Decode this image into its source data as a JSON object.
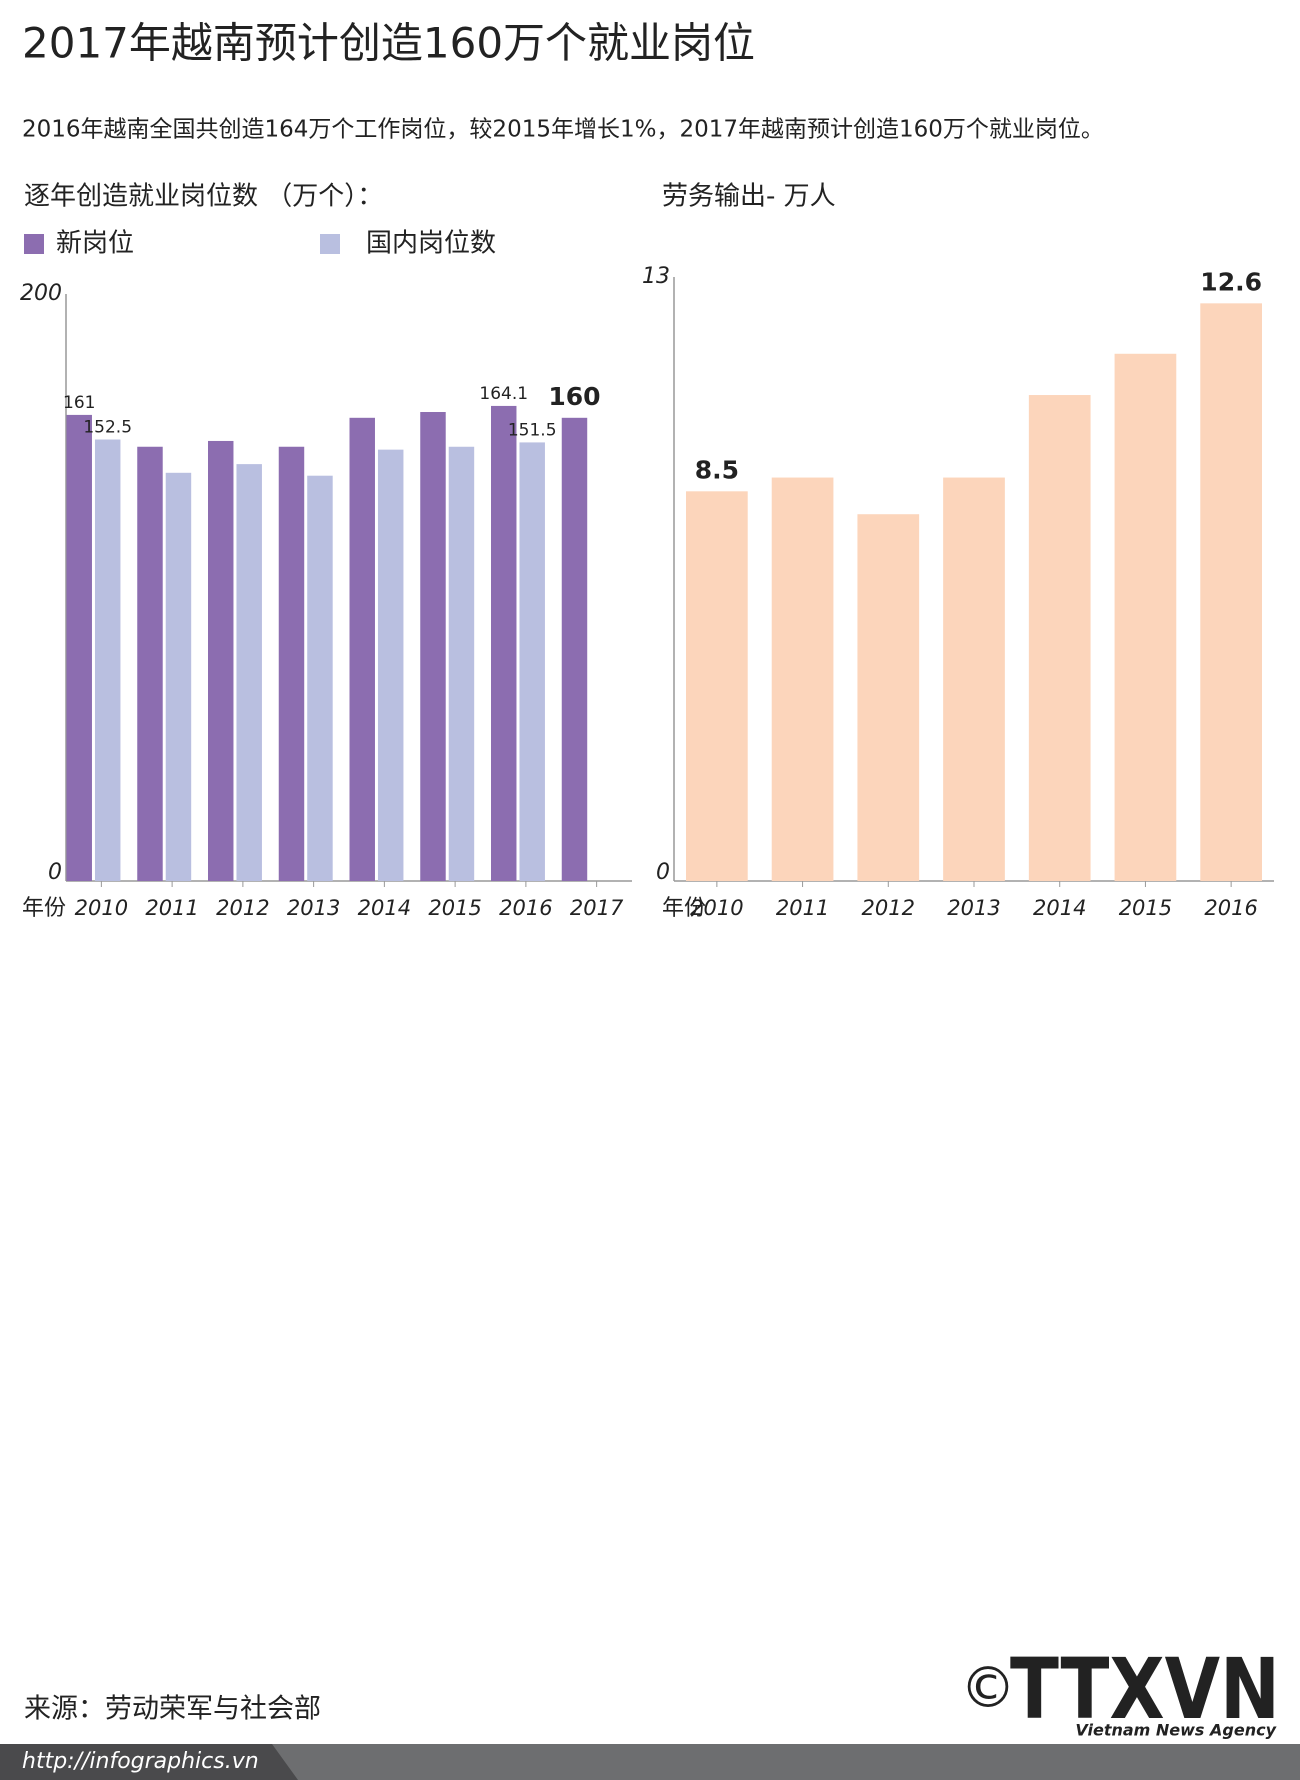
{
  "header": {
    "title": "2017年越南预计创造160万个就业岗位",
    "subtitle": "2016年越南全国共创造164万个工作岗位，较2015年增长1%，2017年越南预计创造160万个就业岗位。"
  },
  "chart_data": [
    {
      "type": "bar",
      "title": "逐年创造就业岗位数 （万个）：",
      "x_label": "年份",
      "categories": [
        "2010",
        "2011",
        "2012",
        "2013",
        "2014",
        "2015",
        "2016",
        "2017"
      ],
      "series": [
        {
          "name": "新岗位",
          "color": "#8c6db0",
          "values": [
            161,
            150,
            152,
            150,
            160,
            162,
            164.1,
            160
          ],
          "value_labels": [
            "161",
            null,
            null,
            null,
            null,
            null,
            "164.1",
            "160"
          ]
        },
        {
          "name": "国内岗位数",
          "color": "#b9bfe0",
          "values": [
            152.5,
            141,
            144,
            140,
            149,
            150,
            151.5,
            null
          ],
          "value_labels": [
            "152.5",
            null,
            null,
            null,
            null,
            null,
            "151.5",
            null
          ]
        }
      ],
      "ylim": [
        0,
        200
      ],
      "yticks": [
        0,
        200
      ],
      "grid": false
    },
    {
      "type": "bar",
      "title": "劳务输出- 万人",
      "x_label": "年份",
      "categories": [
        "2010",
        "2011",
        "2012",
        "2013",
        "2014",
        "2015",
        "2016"
      ],
      "values": [
        8.5,
        8.8,
        8.0,
        8.8,
        10.6,
        11.5,
        12.6
      ],
      "value_labels": [
        "8.5",
        null,
        null,
        null,
        null,
        null,
        "12.6"
      ],
      "color": "#fcd5bb",
      "ylim": [
        0,
        13
      ],
      "yticks": [
        0,
        13
      ],
      "grid": false
    }
  ],
  "footer": {
    "source": "来源：劳动荣军与社会部",
    "url": "http://infographics.vn",
    "copyright": "©",
    "logo": "TTXVN",
    "logo_tagline": "Vietnam News Agency"
  }
}
